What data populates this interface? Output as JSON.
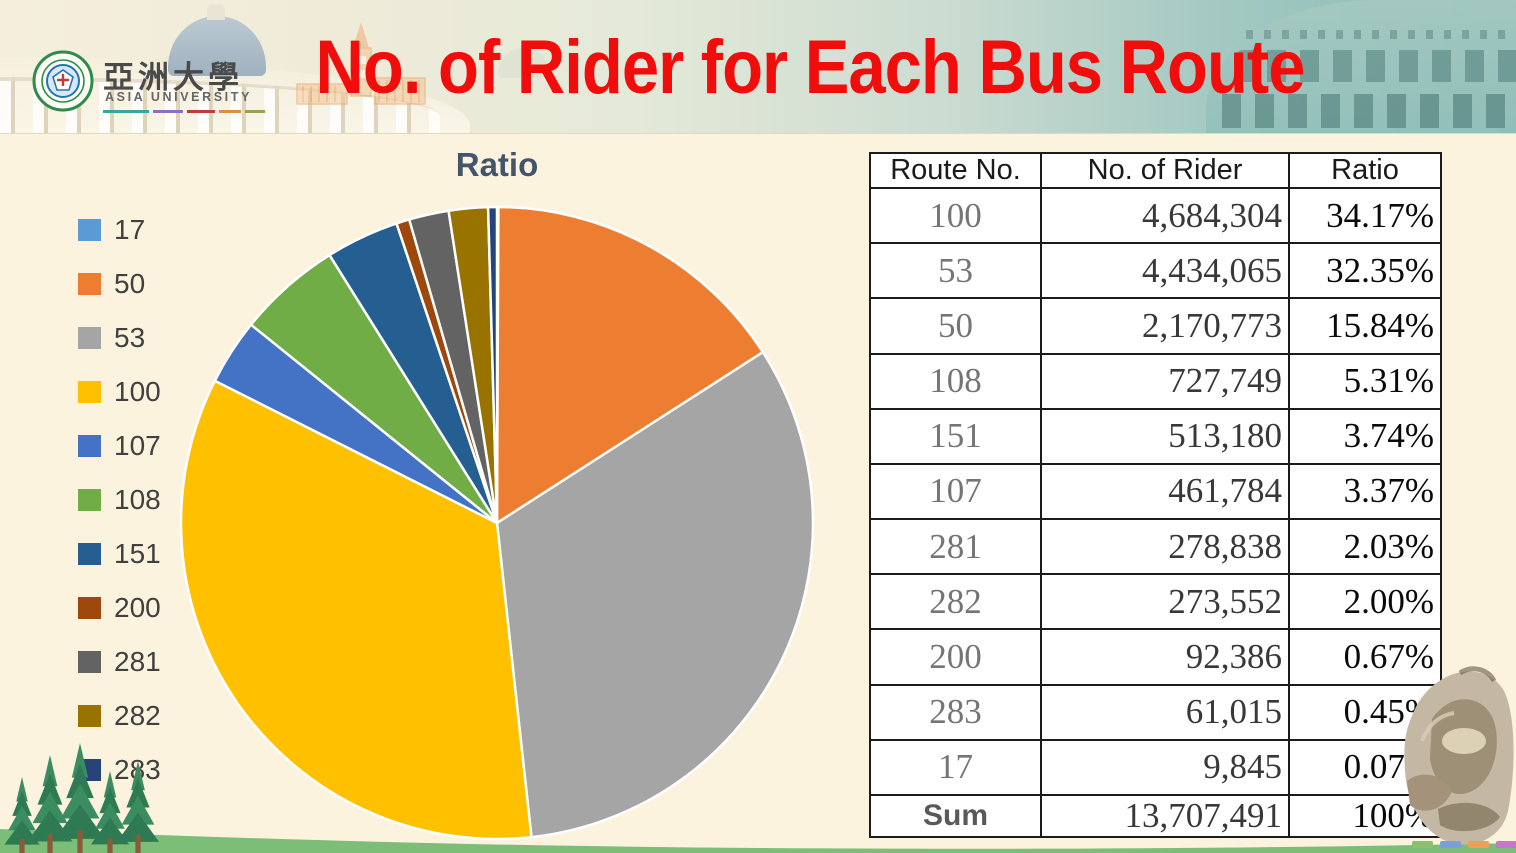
{
  "slide": {
    "title": "No. of Rider for Each Bus Route",
    "title_color": "#F20D0D",
    "background_color": "#FCF3DF"
  },
  "logo": {
    "cjk_name": "亞洲大學",
    "latin_name": "ASIA UNIVERSITY"
  },
  "chart_data": {
    "type": "pie",
    "title": "Ratio",
    "legend_position": "left",
    "start_angle_deg": 0,
    "direction": "clockwise",
    "slice_border_color": "#FFFFFF",
    "categories": [
      "17",
      "50",
      "53",
      "100",
      "107",
      "108",
      "151",
      "200",
      "281",
      "282",
      "283"
    ],
    "values_pct": [
      0.07,
      15.84,
      32.35,
      34.17,
      3.37,
      5.31,
      3.74,
      0.67,
      2.03,
      2.0,
      0.45
    ],
    "colors": [
      "#5B9BD5",
      "#ED7D31",
      "#A5A5A5",
      "#FFC000",
      "#4472C4",
      "#70AD47",
      "#255E91",
      "#9E480E",
      "#636363",
      "#997300",
      "#264478"
    ]
  },
  "table": {
    "columns": [
      "Route No.",
      "No. of Rider",
      "Ratio"
    ],
    "rows": [
      [
        "100",
        "4,684,304",
        "34.17%"
      ],
      [
        "53",
        "4,434,065",
        "32.35%"
      ],
      [
        "50",
        "2,170,773",
        "15.84%"
      ],
      [
        "108",
        "727,749",
        "5.31%"
      ],
      [
        "151",
        "513,180",
        "3.74%"
      ],
      [
        "107",
        "461,784",
        "3.37%"
      ],
      [
        "281",
        "278,838",
        "2.03%"
      ],
      [
        "282",
        "273,552",
        "2.00%"
      ],
      [
        "200",
        "92,386",
        "0.67%"
      ],
      [
        "283",
        "61,015",
        "0.45%"
      ],
      [
        "17",
        "9,845",
        "0.07%"
      ]
    ],
    "sum_row": [
      "Sum",
      "13,707,491",
      "100%"
    ]
  }
}
